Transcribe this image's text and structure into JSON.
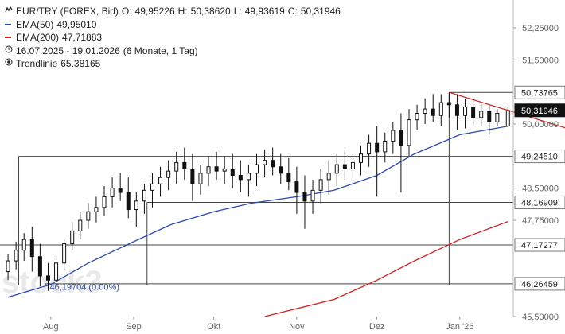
{
  "legend": {
    "symbol": "EUR/TRY (FOREX, Bid)",
    "ohlc": {
      "o_label": "O:",
      "o": "49,95226",
      "h_label": "H:",
      "h": "50,38620",
      "l_label": "L:",
      "l": "49,93619",
      "c_label": "C:",
      "c": "50,31946"
    },
    "ema50": {
      "label": "EMA(50)",
      "value": "49,95010",
      "color": "#2b49b5"
    },
    "ema200": {
      "label": "EMA(200)",
      "value": "47,71883",
      "color": "#d11f1f"
    },
    "range": {
      "text": "16.07.2025 - 19.01.2026",
      "detail": "(6 Monate, 1 Tag)"
    },
    "trend": {
      "label": "Trendlinie",
      "value": "65.38165"
    }
  },
  "watermark": "stock3",
  "chart_data": {
    "type": "candlestick",
    "ylim": [
      45.5,
      52.9
    ],
    "y_ticks": [
      "45,50000",
      "47,75000",
      "48,50000",
      "50,00000",
      "51,50000",
      "52,25000"
    ],
    "x_ticks": [
      "Aug",
      "Sep",
      "Okt",
      "Nov",
      "Dez",
      "Jan '26"
    ],
    "x_tick_dates": [
      "2025-08-01",
      "2025-09-01",
      "2025-10-01",
      "2025-11-01",
      "2025-12-01",
      "2026-01-01"
    ],
    "x_range": [
      "2025-07-16",
      "2026-01-19"
    ],
    "candles": [
      {
        "d": "2025-07-16",
        "o": 46.55,
        "h": 46.95,
        "l": 46.35,
        "c": 46.8
      },
      {
        "d": "2025-07-19",
        "o": 46.8,
        "h": 47.25,
        "l": 46.6,
        "c": 47.05
      },
      {
        "d": "2025-07-22",
        "o": 47.05,
        "h": 47.45,
        "l": 46.8,
        "c": 47.3
      },
      {
        "d": "2025-07-25",
        "o": 47.3,
        "h": 47.6,
        "l": 46.55,
        "c": 46.9
      },
      {
        "d": "2025-07-28",
        "o": 46.9,
        "h": 47.2,
        "l": 46.2,
        "c": 46.45
      },
      {
        "d": "2025-07-31",
        "o": 46.45,
        "h": 46.75,
        "l": 46.1,
        "c": 46.35
      },
      {
        "d": "2025-08-03",
        "o": 46.35,
        "h": 46.9,
        "l": 46.2,
        "c": 46.75
      },
      {
        "d": "2025-08-06",
        "o": 46.75,
        "h": 47.3,
        "l": 46.6,
        "c": 47.2
      },
      {
        "d": "2025-08-09",
        "o": 47.2,
        "h": 47.7,
        "l": 47.05,
        "c": 47.5
      },
      {
        "d": "2025-08-12",
        "o": 47.5,
        "h": 47.95,
        "l": 47.3,
        "c": 47.75
      },
      {
        "d": "2025-08-15",
        "o": 47.75,
        "h": 48.15,
        "l": 47.55,
        "c": 47.95
      },
      {
        "d": "2025-08-18",
        "o": 47.95,
        "h": 48.3,
        "l": 47.7,
        "c": 48.05
      },
      {
        "d": "2025-08-21",
        "o": 48.05,
        "h": 48.55,
        "l": 47.85,
        "c": 48.3
      },
      {
        "d": "2025-08-24",
        "o": 48.3,
        "h": 48.75,
        "l": 48.05,
        "c": 48.5
      },
      {
        "d": "2025-08-27",
        "o": 48.5,
        "h": 48.85,
        "l": 48.2,
        "c": 48.4
      },
      {
        "d": "2025-08-30",
        "o": 48.4,
        "h": 48.75,
        "l": 47.8,
        "c": 48.0
      },
      {
        "d": "2025-09-02",
        "o": 48.0,
        "h": 48.4,
        "l": 47.6,
        "c": 48.2
      },
      {
        "d": "2025-09-05",
        "o": 48.2,
        "h": 48.6,
        "l": 47.9,
        "c": 48.45
      },
      {
        "d": "2025-09-08",
        "o": 48.45,
        "h": 48.85,
        "l": 48.05,
        "c": 48.6
      },
      {
        "d": "2025-09-11",
        "o": 48.6,
        "h": 49.0,
        "l": 48.3,
        "c": 48.75
      },
      {
        "d": "2025-09-14",
        "o": 48.75,
        "h": 49.15,
        "l": 48.45,
        "c": 48.9
      },
      {
        "d": "2025-09-17",
        "o": 48.9,
        "h": 49.35,
        "l": 48.6,
        "c": 49.1
      },
      {
        "d": "2025-09-20",
        "o": 49.1,
        "h": 49.45,
        "l": 48.7,
        "c": 48.95
      },
      {
        "d": "2025-09-23",
        "o": 48.95,
        "h": 49.3,
        "l": 48.2,
        "c": 48.6
      },
      {
        "d": "2025-09-26",
        "o": 48.6,
        "h": 49.05,
        "l": 48.35,
        "c": 48.85
      },
      {
        "d": "2025-09-29",
        "o": 48.85,
        "h": 49.25,
        "l": 48.55,
        "c": 49.0
      },
      {
        "d": "2025-10-02",
        "o": 49.0,
        "h": 49.35,
        "l": 48.7,
        "c": 48.9
      },
      {
        "d": "2025-10-05",
        "o": 48.9,
        "h": 49.25,
        "l": 48.6,
        "c": 48.95
      },
      {
        "d": "2025-10-08",
        "o": 48.95,
        "h": 49.3,
        "l": 48.5,
        "c": 48.8
      },
      {
        "d": "2025-10-11",
        "o": 48.8,
        "h": 49.15,
        "l": 48.4,
        "c": 48.7
      },
      {
        "d": "2025-10-14",
        "o": 48.7,
        "h": 49.05,
        "l": 48.3,
        "c": 48.85
      },
      {
        "d": "2025-10-17",
        "o": 48.85,
        "h": 49.3,
        "l": 48.55,
        "c": 49.05
      },
      {
        "d": "2025-10-20",
        "o": 49.05,
        "h": 49.4,
        "l": 48.75,
        "c": 49.15
      },
      {
        "d": "2025-10-23",
        "o": 49.15,
        "h": 49.45,
        "l": 48.8,
        "c": 49.0
      },
      {
        "d": "2025-10-26",
        "o": 49.0,
        "h": 49.3,
        "l": 48.6,
        "c": 48.85
      },
      {
        "d": "2025-10-29",
        "o": 48.85,
        "h": 49.2,
        "l": 48.45,
        "c": 48.65
      },
      {
        "d": "2025-11-01",
        "o": 48.65,
        "h": 49.0,
        "l": 47.9,
        "c": 48.4
      },
      {
        "d": "2025-11-04",
        "o": 48.4,
        "h": 48.8,
        "l": 47.55,
        "c": 48.2
      },
      {
        "d": "2025-11-07",
        "o": 48.2,
        "h": 48.7,
        "l": 47.9,
        "c": 48.45
      },
      {
        "d": "2025-11-10",
        "o": 48.45,
        "h": 48.95,
        "l": 48.15,
        "c": 48.7
      },
      {
        "d": "2025-11-13",
        "o": 48.7,
        "h": 49.15,
        "l": 48.35,
        "c": 48.85
      },
      {
        "d": "2025-11-16",
        "o": 48.85,
        "h": 49.3,
        "l": 48.55,
        "c": 49.05
      },
      {
        "d": "2025-11-19",
        "o": 49.05,
        "h": 49.4,
        "l": 48.7,
        "c": 48.95
      },
      {
        "d": "2025-11-22",
        "o": 48.95,
        "h": 49.3,
        "l": 48.6,
        "c": 49.1
      },
      {
        "d": "2025-11-25",
        "o": 49.1,
        "h": 49.5,
        "l": 48.8,
        "c": 49.3
      },
      {
        "d": "2025-11-28",
        "o": 49.3,
        "h": 49.75,
        "l": 49.0,
        "c": 49.55
      },
      {
        "d": "2025-12-01",
        "o": 49.55,
        "h": 49.95,
        "l": 48.3,
        "c": 49.35
      },
      {
        "d": "2025-12-04",
        "o": 49.35,
        "h": 49.8,
        "l": 49.1,
        "c": 49.6
      },
      {
        "d": "2025-12-07",
        "o": 49.6,
        "h": 50.05,
        "l": 49.3,
        "c": 49.85
      },
      {
        "d": "2025-12-10",
        "o": 49.85,
        "h": 50.25,
        "l": 48.4,
        "c": 49.5
      },
      {
        "d": "2025-12-13",
        "o": 49.5,
        "h": 50.35,
        "l": 49.25,
        "c": 50.1
      },
      {
        "d": "2025-12-16",
        "o": 50.1,
        "h": 50.45,
        "l": 49.85,
        "c": 50.25
      },
      {
        "d": "2025-12-19",
        "o": 50.25,
        "h": 50.6,
        "l": 50.0,
        "c": 50.35
      },
      {
        "d": "2025-12-22",
        "o": 50.35,
        "h": 50.7,
        "l": 50.05,
        "c": 50.2
      },
      {
        "d": "2025-12-25",
        "o": 50.2,
        "h": 50.7,
        "l": 49.95,
        "c": 50.5
      },
      {
        "d": "2025-12-28",
        "o": 50.5,
        "h": 50.74,
        "l": 50.15,
        "c": 50.45
      },
      {
        "d": "2025-12-31",
        "o": 50.45,
        "h": 50.7,
        "l": 49.85,
        "c": 50.2
      },
      {
        "d": "2026-01-03",
        "o": 50.2,
        "h": 50.6,
        "l": 49.9,
        "c": 50.4
      },
      {
        "d": "2026-01-06",
        "o": 50.4,
        "h": 50.6,
        "l": 49.95,
        "c": 50.15
      },
      {
        "d": "2026-01-09",
        "o": 50.15,
        "h": 50.5,
        "l": 49.95,
        "c": 50.3
      },
      {
        "d": "2026-01-12",
        "o": 50.3,
        "h": 50.45,
        "l": 49.75,
        "c": 50.05
      },
      {
        "d": "2026-01-15",
        "o": 50.05,
        "h": 50.35,
        "l": 49.95,
        "c": 50.25
      },
      {
        "d": "2026-01-19",
        "o": 49.95226,
        "h": 50.3862,
        "l": 49.93619,
        "c": 50.31946
      }
    ],
    "ema50": [
      {
        "d": "2025-07-16",
        "v": 45.95
      },
      {
        "d": "2025-08-01",
        "v": 46.25
      },
      {
        "d": "2025-08-15",
        "v": 46.75
      },
      {
        "d": "2025-09-01",
        "v": 47.25
      },
      {
        "d": "2025-09-15",
        "v": 47.65
      },
      {
        "d": "2025-10-01",
        "v": 47.95
      },
      {
        "d": "2025-10-15",
        "v": 48.15
      },
      {
        "d": "2025-11-01",
        "v": 48.3
      },
      {
        "d": "2025-11-15",
        "v": 48.45
      },
      {
        "d": "2025-12-01",
        "v": 48.8
      },
      {
        "d": "2025-12-15",
        "v": 49.3
      },
      {
        "d": "2026-01-01",
        "v": 49.75
      },
      {
        "d": "2026-01-19",
        "v": 49.95
      }
    ],
    "ema200": [
      {
        "d": "2025-10-20",
        "v": 45.5
      },
      {
        "d": "2025-11-15",
        "v": 45.9
      },
      {
        "d": "2025-12-01",
        "v": 46.35
      },
      {
        "d": "2025-12-15",
        "v": 46.8
      },
      {
        "d": "2026-01-01",
        "v": 47.3
      },
      {
        "d": "2026-01-19",
        "v": 47.72
      }
    ],
    "trendline": {
      "from": {
        "d": "2025-12-28",
        "v": 50.74
      },
      "to": {
        "d": "2026-01-19",
        "v": 50.32
      }
    },
    "levels": [
      {
        "value": 50.73765,
        "label": "50,73765",
        "from": "2025-12-28",
        "style": "box"
      },
      {
        "value": 50.31946,
        "label": "50,31946",
        "style": "current"
      },
      {
        "value": 49.2451,
        "label": "49,24510",
        "from": "2025-07-20",
        "style": "box"
      },
      {
        "value": 48.16909,
        "label": "48,16909",
        "from": "2025-09-06",
        "style": "box"
      },
      {
        "value": 47.17277,
        "label": "47,17277",
        "style": "box"
      },
      {
        "value": 46.26459,
        "label": "46,26459",
        "from": "2025-07-30",
        "style": "box"
      }
    ],
    "annotation": {
      "text": "46,19704 (0.00%)",
      "value": 46.19704,
      "d": "2025-07-31"
    }
  }
}
